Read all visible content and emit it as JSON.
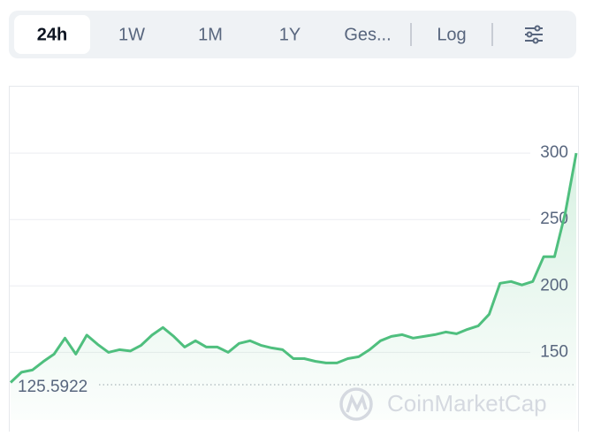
{
  "tabs": [
    "24h",
    "1W",
    "1M",
    "1Y",
    "Ges...",
    "Log"
  ],
  "active_tab": 0,
  "watermark": "CoinMarketCap",
  "chart_data": {
    "type": "line",
    "color": "#4fbf7e",
    "values": [
      127.3,
      135,
      136.7,
      143,
      148.7,
      160.7,
      148.7,
      163,
      156,
      150,
      152,
      151,
      155.3,
      163,
      168.7,
      162,
      154,
      158.7,
      154,
      154,
      150,
      156.7,
      158.7,
      155.3,
      153.3,
      152,
      145.3,
      145.3,
      143.3,
      142,
      142,
      145.3,
      146.7,
      152,
      158.7,
      162,
      163.3,
      160.7,
      162,
      163.3,
      165.3,
      164,
      167.3,
      170,
      178.7,
      202,
      203.3,
      200.7,
      203.3,
      222,
      222,
      255.3,
      300
    ],
    "ylim": [
      99,
      350
    ],
    "yticks": [
      150,
      200,
      250,
      300
    ],
    "grid": true,
    "reference": 125.5922
  }
}
